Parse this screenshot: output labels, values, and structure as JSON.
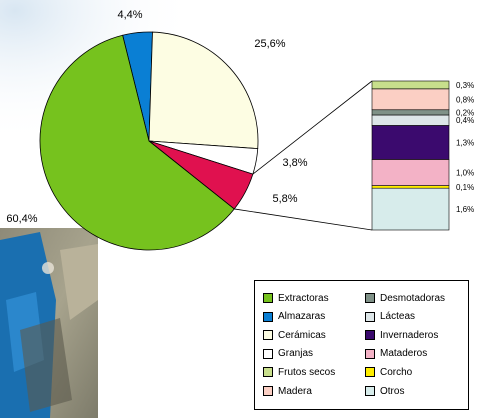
{
  "chart_data": {
    "type": "pie",
    "title": "",
    "slices": [
      {
        "name": "Almazaras",
        "value": 4.4,
        "label": "4,4%",
        "color": "#0a7fd4"
      },
      {
        "name": "Cerámicas",
        "value": 25.6,
        "label": "25,6%",
        "color": "#fdfde3"
      },
      {
        "name": "Granjas",
        "value": 3.8,
        "label": "3,8%",
        "color": "#ffffff"
      },
      {
        "name": "Otros (desglose)",
        "value": 5.8,
        "label": "5,8%",
        "color": "#e0114f"
      },
      {
        "name": "Extractoras",
        "value": 60.4,
        "label": "60,4%",
        "color": "#76c21e"
      }
    ],
    "breakdown": {
      "type": "stacked-bar",
      "segments": [
        {
          "name": "Otros",
          "value": 1.6,
          "label": "1,6%",
          "color": "#d7eceb"
        },
        {
          "name": "Corcho",
          "value": 0.1,
          "label": "0,1%",
          "color": "#ffee00"
        },
        {
          "name": "Mataderos",
          "value": 1.0,
          "label": "1,0%",
          "color": "#f3b2c6"
        },
        {
          "name": "Invernaderos",
          "value": 1.3,
          "label": "1,3%",
          "color": "#3b0a6e"
        },
        {
          "name": "Lácteas",
          "value": 0.4,
          "label": "0,4%",
          "color": "#dde6e8"
        },
        {
          "name": "Desmotadoras",
          "value": 0.2,
          "label": "0,2%",
          "color": "#7f9187"
        },
        {
          "name": "Madera",
          "value": 0.8,
          "label": "0,8%",
          "color": "#fbcfc4"
        },
        {
          "name": "Frutos secos",
          "value": 0.3,
          "label": "0,3%",
          "color": "#c8df8c"
        }
      ]
    },
    "legend": {
      "placement": "bottom-right",
      "entries": [
        {
          "name": "Extractoras",
          "color": "#76c21e"
        },
        {
          "name": "Desmotadoras",
          "color": "#7f9187"
        },
        {
          "name": "Almazaras",
          "color": "#0a7fd4"
        },
        {
          "name": "Lácteas",
          "color": "#dde6e8"
        },
        {
          "name": "Cerámicas",
          "color": "#fdfde3"
        },
        {
          "name": "Invernaderos",
          "color": "#3b0a6e"
        },
        {
          "name": "Granjas",
          "color": "#ffffff"
        },
        {
          "name": "Mataderos",
          "color": "#f3b2c6"
        },
        {
          "name": "Frutos secos",
          "color": "#c8df8c"
        },
        {
          "name": "Corcho",
          "color": "#ffee00"
        },
        {
          "name": "Madera",
          "color": "#fbcfc4"
        },
        {
          "name": "Otros",
          "color": "#d7eceb"
        }
      ]
    }
  }
}
